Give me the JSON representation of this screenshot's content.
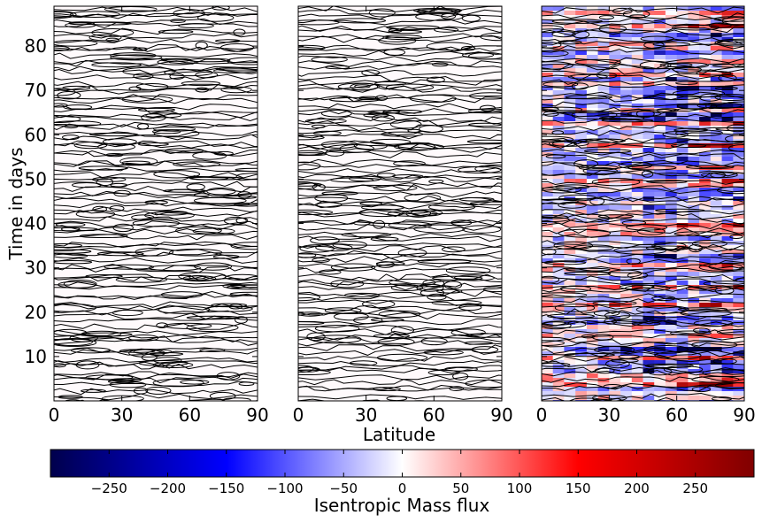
{
  "chart_data": {
    "type": "heatmap",
    "panels": [
      {
        "style": "contour-only",
        "xlim": [
          0,
          90
        ],
        "ylim": [
          0,
          89
        ]
      },
      {
        "style": "contour-only",
        "xlim": [
          0,
          90
        ],
        "ylim": [
          0,
          89
        ]
      },
      {
        "style": "filled-contour",
        "xlim": [
          0,
          90
        ],
        "ylim": [
          0,
          89
        ]
      }
    ],
    "xlabel": "Latitude",
    "ylabel": "Time in days",
    "xticks": [
      0,
      30,
      60,
      90
    ],
    "xtick_labels": [
      "0",
      "30",
      "60",
      "90"
    ],
    "yticks": [
      10,
      20,
      30,
      40,
      50,
      60,
      70,
      80
    ],
    "ytick_labels": [
      "10",
      "20",
      "30",
      "40",
      "50",
      "60",
      "70",
      "80"
    ],
    "colorbar": {
      "label": "Isentropic Mass flux",
      "range": [
        -300,
        300
      ],
      "ticks": [
        -250,
        -200,
        -150,
        -100,
        -50,
        0,
        50,
        100,
        150,
        200,
        250
      ],
      "tick_labels": [
        "−250",
        "−200",
        "−150",
        "−100",
        "−50",
        "0",
        "50",
        "100",
        "150",
        "200",
        "250"
      ],
      "colormap": "seismic",
      "colors": {
        "low": "#00004c",
        "mid_low": "#0000ff",
        "zero": "#ffffff",
        "mid_high": "#ff0000",
        "high": "#800000"
      }
    },
    "grid": false
  }
}
